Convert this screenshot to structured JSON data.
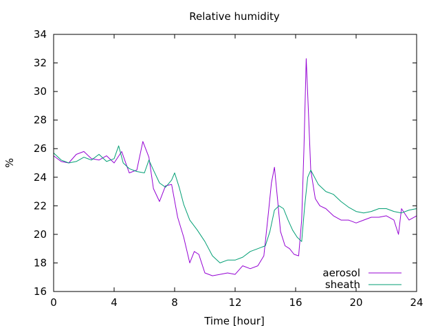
{
  "chart_data": {
    "type": "line",
    "title": "Relative humidity",
    "xlabel": "Time [hour]",
    "ylabel": "%",
    "xlim": [
      0,
      24
    ],
    "ylim": [
      16,
      34
    ],
    "xticks": [
      0,
      4,
      8,
      12,
      16,
      20,
      24
    ],
    "yticks": [
      16,
      18,
      20,
      22,
      24,
      26,
      28,
      30,
      32,
      34
    ],
    "grid": false,
    "legend_position": "bottom-right",
    "series": [
      {
        "name": "aerosol",
        "color": "#9400d3",
        "x": [
          0,
          0.5,
          1,
          1.5,
          2,
          2.5,
          3,
          3.5,
          4,
          4.5,
          5,
          5.5,
          5.9,
          6.3,
          6.6,
          7,
          7.4,
          7.8,
          8.2,
          8.6,
          9,
          9.3,
          9.6,
          10,
          10.5,
          11,
          11.5,
          12,
          12.5,
          13,
          13.5,
          13.9,
          14.2,
          14.4,
          14.6,
          14.8,
          15,
          15.3,
          15.6,
          15.9,
          16.2,
          16.4,
          16.55,
          16.7,
          16.85,
          17,
          17.3,
          17.6,
          18,
          18.5,
          19,
          19.5,
          20,
          20.5,
          21,
          21.5,
          22,
          22.5,
          22.8,
          23,
          23.5,
          24
        ],
        "y": [
          25.5,
          25.1,
          25.0,
          25.6,
          25.8,
          25.3,
          25.2,
          25.5,
          25.0,
          25.8,
          24.3,
          24.5,
          26.5,
          25.4,
          23.2,
          22.3,
          23.4,
          23.5,
          21.2,
          19.8,
          18.0,
          18.8,
          18.6,
          17.3,
          17.1,
          17.2,
          17.3,
          17.2,
          17.8,
          17.6,
          17.8,
          18.5,
          21.5,
          23.6,
          24.7,
          22.5,
          20.2,
          19.2,
          19.0,
          18.6,
          18.5,
          21.0,
          26.0,
          32.3,
          28.5,
          24.5,
          22.5,
          22.0,
          21.8,
          21.3,
          21.0,
          21.0,
          20.8,
          21.0,
          21.2,
          21.2,
          21.3,
          21.0,
          20.0,
          21.8,
          21.0,
          21.3
        ]
      },
      {
        "name": "sheath",
        "color": "#009e73",
        "x": [
          0,
          0.5,
          1,
          1.5,
          2,
          2.5,
          3,
          3.5,
          4,
          4.3,
          4.6,
          5,
          5.5,
          6,
          6.3,
          6.6,
          7,
          7.4,
          7.8,
          8,
          8.3,
          8.6,
          9,
          9.5,
          10,
          10.5,
          11,
          11.5,
          12,
          12.5,
          13,
          13.5,
          14,
          14.3,
          14.6,
          14.9,
          15.2,
          15.5,
          15.8,
          16.1,
          16.4,
          16.6,
          16.8,
          17,
          17.5,
          18,
          18.5,
          19,
          19.5,
          20,
          20.5,
          21,
          21.5,
          22,
          22.5,
          23,
          23.5,
          24
        ],
        "y": [
          25.7,
          25.2,
          25.0,
          25.1,
          25.4,
          25.2,
          25.6,
          25.1,
          25.3,
          26.2,
          25.0,
          24.6,
          24.4,
          24.3,
          25.2,
          24.5,
          23.6,
          23.3,
          23.8,
          24.3,
          23.3,
          22.1,
          21.0,
          20.3,
          19.5,
          18.5,
          18.0,
          18.2,
          18.2,
          18.4,
          18.8,
          19.0,
          19.2,
          20.2,
          21.7,
          22.0,
          21.8,
          21.0,
          20.3,
          19.8,
          19.5,
          22.0,
          24.0,
          24.5,
          23.5,
          23.0,
          22.8,
          22.3,
          21.9,
          21.6,
          21.5,
          21.6,
          21.8,
          21.8,
          21.6,
          21.5,
          21.7,
          21.8
        ]
      }
    ]
  }
}
